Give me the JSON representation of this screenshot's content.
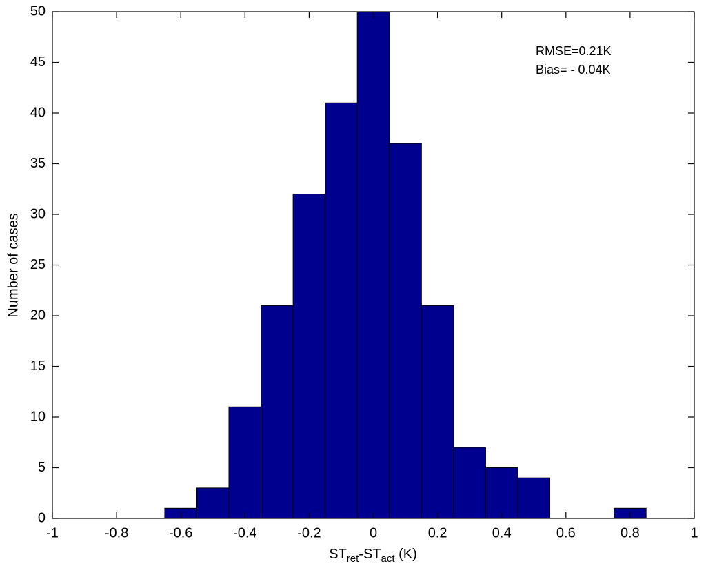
{
  "chart_data": {
    "type": "histogram",
    "xlabel_parts": [
      "ST",
      "ret",
      "-ST",
      "act",
      " (K)"
    ],
    "ylabel": "Number of cases",
    "annotations": [
      "RMSE=0.21K",
      "Bias= - 0.04K"
    ],
    "bins": [
      -0.65,
      -0.55,
      -0.45,
      -0.35,
      -0.25,
      -0.15,
      -0.05,
      0.05,
      0.15,
      0.25,
      0.35,
      0.45,
      0.55,
      0.65,
      0.75,
      0.85
    ],
    "values": [
      1,
      3,
      11,
      21,
      32,
      41,
      50,
      37,
      21,
      7,
      5,
      4,
      0,
      0,
      1
    ],
    "color": "#00008f",
    "xlim": [
      -1,
      1
    ],
    "xticks": [
      -1,
      -0.8,
      -0.6,
      -0.4,
      -0.2,
      0,
      0.2,
      0.4,
      0.6,
      0.8,
      1
    ],
    "ylim": [
      0,
      50
    ],
    "yticks": [
      0,
      5,
      10,
      15,
      20,
      25,
      30,
      35,
      40,
      45,
      50
    ]
  }
}
